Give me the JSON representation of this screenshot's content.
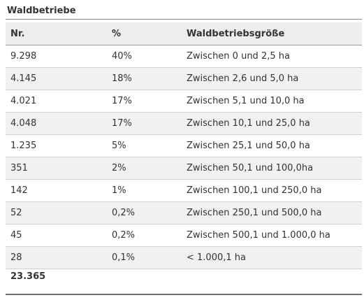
{
  "title": "Waldbetriebe",
  "columns": [
    "Nr.",
    "%",
    "Waldbetriebsgröße"
  ],
  "rows": [
    [
      "9.298",
      "40%",
      "Zwischen 0 und 2,5 ha"
    ],
    [
      "4.145",
      "18%",
      "Zwischen 2,6 und 5,0 ha"
    ],
    [
      "4.021",
      "17%",
      "Zwischen 5,1 und 10,0 ha"
    ],
    [
      "4.048",
      "17%",
      "Zwischen 10,1 und 25,0 ha"
    ],
    [
      "1.235",
      "5%",
      "Zwischen 25,1 und 50,0 ha"
    ],
    [
      "351",
      "2%",
      "Zwischen 50,1 und 100,0ha"
    ],
    [
      "142",
      "1%",
      "Zwischen 100,1 und 250,0 ha"
    ],
    [
      "52",
      "0,2%",
      "Zwischen 250,1 und 500,0 ha"
    ],
    [
      "45",
      "0,2%",
      "Zwischen 500,1 und 1.000,0 ha"
    ],
    [
      "28",
      "0,1%",
      "< 1.000,1  ha"
    ]
  ],
  "total": "23.365"
}
